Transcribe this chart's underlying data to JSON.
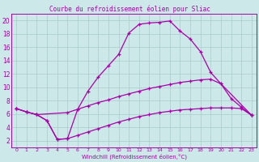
{
  "title": "Courbe du refroidissement éolien pour Sliac",
  "xlabel": "Windchill (Refroidissement éolien,°C)",
  "bg_color": "#cce8e8",
  "grid_color": "#aacccc",
  "line_color": "#aa00aa",
  "xlim": [
    -0.5,
    23.5
  ],
  "ylim": [
    1.0,
    21.0
  ],
  "xticks": [
    0,
    1,
    2,
    3,
    4,
    5,
    6,
    7,
    8,
    9,
    10,
    11,
    12,
    13,
    14,
    15,
    16,
    17,
    18,
    19,
    20,
    21,
    22,
    23
  ],
  "yticks": [
    2,
    4,
    6,
    8,
    10,
    12,
    14,
    16,
    18,
    20
  ],
  "curve1_x": [
    0,
    1,
    2,
    3,
    4,
    5,
    6,
    7,
    8,
    9,
    10,
    11,
    12,
    13,
    14,
    15,
    16,
    17,
    18,
    19,
    20,
    21,
    22,
    23
  ],
  "curve1_y": [
    6.8,
    6.3,
    5.9,
    5.0,
    2.2,
    2.3,
    6.7,
    9.4,
    11.5,
    13.2,
    14.9,
    18.1,
    19.4,
    19.6,
    19.7,
    19.9,
    18.4,
    17.2,
    15.3,
    12.2,
    10.5,
    8.3,
    7.0,
    5.8
  ],
  "curve2_x": [
    0,
    1,
    2,
    3,
    4,
    5,
    6,
    7,
    8,
    9,
    10,
    11,
    12,
    13,
    14,
    15,
    16,
    17,
    18,
    19,
    20,
    21,
    22,
    23
  ],
  "curve2_y": [
    6.8,
    6.3,
    5.9,
    5.0,
    2.2,
    2.3,
    2.8,
    3.3,
    3.8,
    4.3,
    4.8,
    5.2,
    5.6,
    5.9,
    6.2,
    6.4,
    6.6,
    6.7,
    6.8,
    6.9,
    6.9,
    6.9,
    6.8,
    5.8
  ],
  "curve3_x": [
    0,
    1,
    2,
    5,
    6,
    7,
    8,
    9,
    10,
    11,
    12,
    13,
    14,
    15,
    16,
    17,
    18,
    19,
    20,
    23
  ],
  "curve3_y": [
    6.8,
    6.3,
    5.9,
    6.2,
    6.7,
    7.2,
    7.7,
    8.1,
    8.6,
    9.0,
    9.4,
    9.8,
    10.1,
    10.4,
    10.7,
    10.9,
    11.1,
    11.2,
    10.5,
    5.8
  ]
}
